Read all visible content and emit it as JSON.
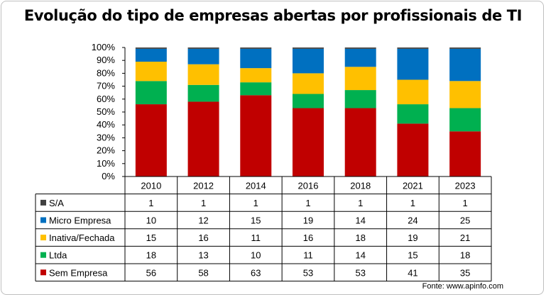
{
  "chart_data": {
    "type": "bar",
    "stacked": "percent",
    "title": "Evolução do tipo de empresas abertas por profissionais de TI",
    "categories": [
      "2010",
      "2012",
      "2014",
      "2016",
      "2018",
      "2021",
      "2023"
    ],
    "series": [
      {
        "name": "S/A",
        "values": [
          1,
          1,
          1,
          1,
          1,
          1,
          1
        ],
        "color": "#404040"
      },
      {
        "name": "Micro Empresa",
        "values": [
          10,
          12,
          15,
          19,
          14,
          24,
          25
        ],
        "color": "#0070c0"
      },
      {
        "name": "Inativa/Fechada",
        "values": [
          15,
          16,
          11,
          16,
          18,
          19,
          21
        ],
        "color": "#ffc000"
      },
      {
        "name": "Ltda",
        "values": [
          18,
          13,
          10,
          11,
          14,
          15,
          18
        ],
        "color": "#00b050"
      },
      {
        "name": "Sem Empresa",
        "values": [
          56,
          58,
          63,
          53,
          53,
          41,
          35
        ],
        "color": "#c00000"
      }
    ],
    "yticks": [
      "0%",
      "10%",
      "20%",
      "30%",
      "40%",
      "50%",
      "60%",
      "70%",
      "80%",
      "90%",
      "100%"
    ],
    "ylim": [
      0,
      100
    ],
    "grid": false,
    "legend": "data-table"
  },
  "source_text": "Fonte:  www.apinfo.com"
}
